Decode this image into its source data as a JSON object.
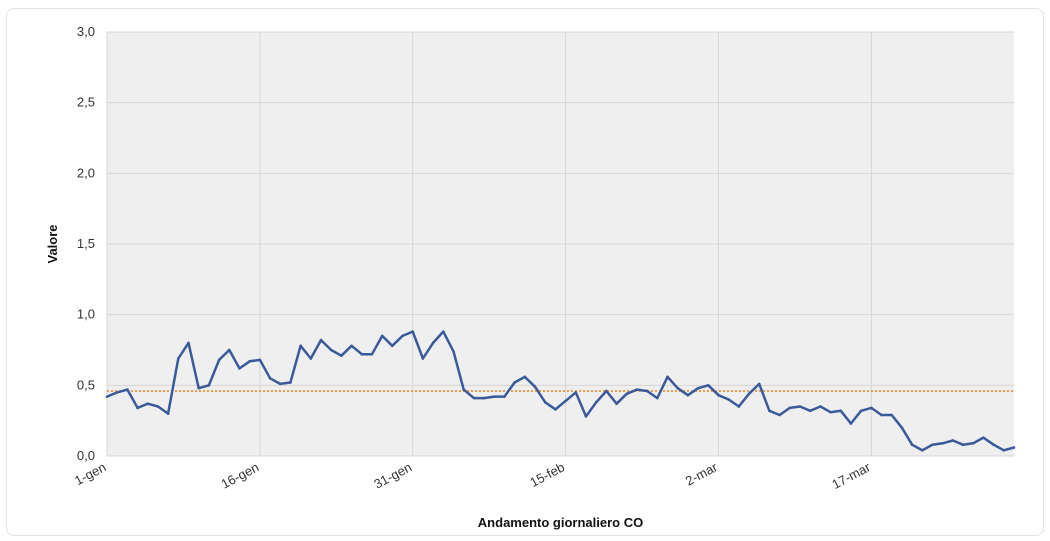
{
  "chart_data": {
    "type": "line",
    "xlabel": "Andamento giornaliero CO",
    "ylabel": "Valore",
    "ylim": [
      0,
      3
    ],
    "y_ticks": [
      "0,0",
      "0,5",
      "1,0",
      "1,5",
      "2,0",
      "2,5",
      "3,0"
    ],
    "x_ticks": [
      "1-gen",
      "16-gen",
      "31-gen",
      "15-feb",
      "2-mar",
      "17-mar"
    ],
    "grid": true,
    "legend": "none",
    "colors": {
      "series": "#3a5a9a",
      "threshold": "#f07f1a",
      "plot_background": "#efefef",
      "grid": "#d6d6d6"
    },
    "threshold": 0.46,
    "series": [
      {
        "values": [
          0.42,
          0.45,
          0.47,
          0.34,
          0.37,
          0.35,
          0.3,
          0.69,
          0.8,
          0.48,
          0.5,
          0.68,
          0.75,
          0.62,
          0.67,
          0.68,
          0.55,
          0.51,
          0.52,
          0.78,
          0.69,
          0.82,
          0.75,
          0.71,
          0.78,
          0.72,
          0.72,
          0.85,
          0.78,
          0.85,
          0.88,
          0.69,
          0.8,
          0.88,
          0.74,
          0.47,
          0.41,
          0.41,
          0.42,
          0.42,
          0.52,
          0.56,
          0.49,
          0.38,
          0.33,
          0.39,
          0.45,
          0.28,
          0.38,
          0.46,
          0.37,
          0.44,
          0.47,
          0.46,
          0.41,
          0.56,
          0.48,
          0.43,
          0.48,
          0.5,
          0.43,
          0.4,
          0.35,
          0.44,
          0.51,
          0.32,
          0.29,
          0.34,
          0.35,
          0.32,
          0.35,
          0.31,
          0.32,
          0.23,
          0.32,
          0.34,
          0.29,
          0.29,
          0.2,
          0.08,
          0.04,
          0.08,
          0.09,
          0.11,
          0.08,
          0.09,
          0.13,
          0.08,
          0.04,
          0.06
        ]
      }
    ]
  }
}
